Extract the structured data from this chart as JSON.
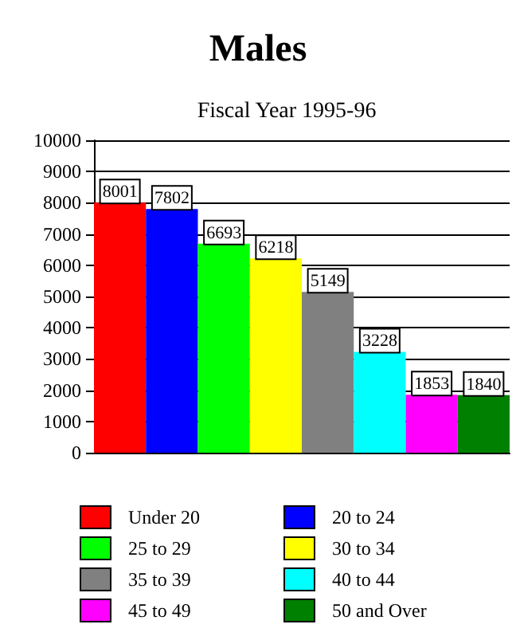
{
  "chart_data": {
    "type": "bar",
    "title": "Males",
    "subtitle": "Fiscal Year 1995-96",
    "categories": [
      null
    ],
    "series": [
      {
        "name": "Under 20",
        "color": "#ff0000",
        "values": [
          8001
        ]
      },
      {
        "name": "20 to 24",
        "color": "#0000ff",
        "values": [
          7802
        ]
      },
      {
        "name": "25 to 29",
        "color": "#00ff00",
        "values": [
          6693
        ]
      },
      {
        "name": "30 to 34",
        "color": "#ffff00",
        "values": [
          6218
        ]
      },
      {
        "name": "35 to 39",
        "color": "#808080",
        "values": [
          5149
        ]
      },
      {
        "name": "40 to 44",
        "color": "#00ffff",
        "values": [
          3228
        ]
      },
      {
        "name": "45 to 49",
        "color": "#ff00ff",
        "values": [
          1853
        ]
      },
      {
        "name": "50 and Over",
        "color": "#008000",
        "values": [
          1840
        ]
      }
    ],
    "ylim": [
      0,
      10000
    ],
    "yticks": [
      0,
      1000,
      2000,
      3000,
      4000,
      5000,
      6000,
      7000,
      8000,
      9000,
      10000
    ],
    "grid": "y",
    "legend": "bottom",
    "tick_labels": "y",
    "data_labels": true
  }
}
